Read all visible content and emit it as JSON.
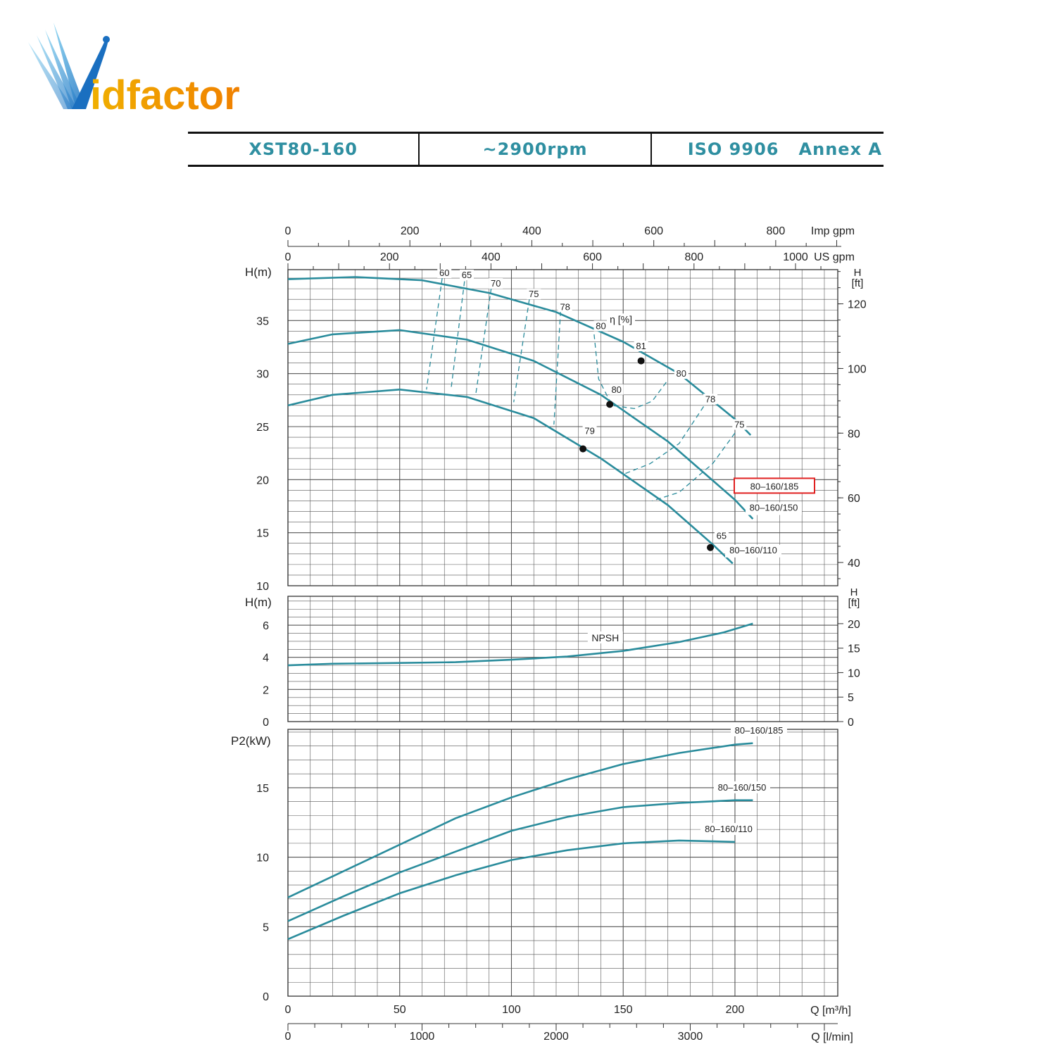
{
  "logo": {
    "text": "idfactor",
    "letter": "V"
  },
  "header": {
    "model": "XST80-160",
    "speed": "~2900rpm",
    "standard": "ISO 9906   Annex A"
  },
  "colors": {
    "curve": "#2a8c9c",
    "grid": "#555555",
    "header_text": "#2f8fa1",
    "highlight_box": "#e02020"
  },
  "chart_data": {
    "type": "line",
    "top_axes": {
      "imp_gpm": {
        "label": "Imp gpm",
        "ticks": [
          0,
          200,
          400,
          600,
          800
        ]
      },
      "us_gpm": {
        "label": "US gpm",
        "ticks": [
          0,
          200,
          400,
          600,
          800,
          1000
        ]
      }
    },
    "bottom_axes": {
      "q_m3h": {
        "label": "Q [m³/h]",
        "ticks": [
          0,
          50,
          100,
          150,
          200
        ],
        "range": [
          0,
          246
        ]
      },
      "q_lmin": {
        "label": "Q [l/min]",
        "ticks": [
          0,
          1000,
          2000,
          3000
        ]
      }
    },
    "head_panel": {
      "ylabel": "H(m)",
      "ylabel_right": "H [ft]",
      "yticks": [
        10,
        15,
        20,
        25,
        30,
        35
      ],
      "yticks_right": [
        40,
        60,
        80,
        100,
        120
      ],
      "ylim": [
        10,
        39.8
      ],
      "efficiency_label": "η [%]",
      "series": [
        {
          "name": "80–160/185",
          "highlighted": true,
          "q": [
            0,
            30,
            60,
            90,
            120,
            150,
            175,
            200,
            207
          ],
          "h": [
            38.9,
            39.1,
            38.8,
            37.6,
            35.8,
            33.0,
            30.0,
            25.7,
            24.2
          ]
        },
        {
          "name": "80–160/150",
          "q": [
            0,
            20,
            50,
            80,
            110,
            140,
            170,
            200,
            208
          ],
          "h": [
            32.8,
            33.7,
            34.1,
            33.2,
            31.2,
            28.0,
            23.6,
            18.1,
            16.3
          ]
        },
        {
          "name": "80–160/110",
          "q": [
            0,
            20,
            50,
            80,
            110,
            140,
            170,
            190,
            199
          ],
          "h": [
            27.0,
            28.0,
            28.5,
            27.8,
            25.8,
            22.0,
            17.6,
            13.9,
            12.1
          ]
        }
      ],
      "efficiency_labels": [
        {
          "text": "60",
          "q": 70,
          "h": 39.2
        },
        {
          "text": "65",
          "q": 80,
          "h": 39.0
        },
        {
          "text": "70",
          "q": 93,
          "h": 38.2
        },
        {
          "text": "75",
          "q": 110,
          "h": 37.2
        },
        {
          "text": "78",
          "q": 124,
          "h": 36.0
        },
        {
          "text": "80",
          "q": 140,
          "h": 34.2
        },
        {
          "text": "81",
          "q": 158,
          "h": 32.3
        },
        {
          "text": "80",
          "q": 176,
          "h": 29.7
        },
        {
          "text": "78",
          "q": 189,
          "h": 27.3
        },
        {
          "text": "75",
          "q": 202,
          "h": 24.9
        },
        {
          "text": "80",
          "q": 147,
          "h": 28.2
        },
        {
          "text": "79",
          "q": 135,
          "h": 24.3
        },
        {
          "text": "65",
          "q": 194,
          "h": 14.4
        }
      ],
      "best_points": [
        {
          "q": 158,
          "h": 31.2
        },
        {
          "q": 144,
          "h": 27.1
        },
        {
          "q": 132,
          "h": 22.9
        },
        {
          "q": 189,
          "h": 13.6
        }
      ],
      "iso_curves": [
        {
          "q": [
            69,
            62
          ],
          "h": [
            39.0,
            28.5
          ]
        },
        {
          "q": [
            79,
            73
          ],
          "h": [
            38.7,
            28.6
          ]
        },
        {
          "q": [
            91,
            84
          ],
          "h": [
            38.1,
            28.0
          ]
        },
        {
          "q": [
            108,
            101
          ],
          "h": [
            37.0,
            27.3
          ]
        },
        {
          "q": [
            122,
            119
          ],
          "h": [
            35.9,
            25.2
          ]
        },
        {
          "q": [
            137,
            139,
            145,
            155,
            163,
            170
          ],
          "h": [
            33.7,
            29.5,
            27.0,
            26.7,
            27.4,
            29.4
          ]
        },
        {
          "q": [
            186,
            175,
            162,
            150
          ],
          "h": [
            26.9,
            23.4,
            21.5,
            20.5
          ]
        },
        {
          "q": [
            200,
            190,
            175,
            163
          ],
          "h": [
            24.4,
            21.5,
            18.8,
            18.0
          ]
        }
      ]
    },
    "npsh_panel": {
      "ylabel": "H(m)",
      "ylabel_right": "H [ft]",
      "label": "NPSH",
      "yticks": [
        0,
        2,
        4,
        6
      ],
      "yticks_right": [
        0,
        5,
        10,
        15,
        20
      ],
      "ylim": [
        0,
        7.8
      ],
      "q": [
        0,
        20,
        50,
        75,
        100,
        125,
        150,
        175,
        195,
        208
      ],
      "h": [
        3.5,
        3.6,
        3.65,
        3.7,
        3.85,
        4.05,
        4.4,
        4.95,
        5.55,
        6.1
      ]
    },
    "power_panel": {
      "ylabel": "P2(kW)",
      "yticks": [
        0,
        5,
        10,
        15
      ],
      "ylim": [
        0,
        19.2
      ],
      "series": [
        {
          "name": "80–160/185",
          "q": [
            0,
            25,
            50,
            75,
            100,
            125,
            150,
            175,
            200,
            208
          ],
          "p": [
            7.1,
            9.0,
            10.9,
            12.8,
            14.3,
            15.6,
            16.7,
            17.5,
            18.1,
            18.2
          ]
        },
        {
          "name": "80–160/150",
          "q": [
            0,
            25,
            50,
            75,
            100,
            125,
            150,
            175,
            200,
            208
          ],
          "p": [
            5.4,
            7.2,
            8.9,
            10.4,
            11.9,
            12.9,
            13.6,
            13.9,
            14.1,
            14.1
          ]
        },
        {
          "name": "80–160/110",
          "q": [
            0,
            25,
            50,
            75,
            100,
            125,
            150,
            175,
            200
          ],
          "p": [
            4.1,
            5.8,
            7.4,
            8.7,
            9.8,
            10.5,
            11.0,
            11.2,
            11.1
          ]
        }
      ]
    }
  }
}
